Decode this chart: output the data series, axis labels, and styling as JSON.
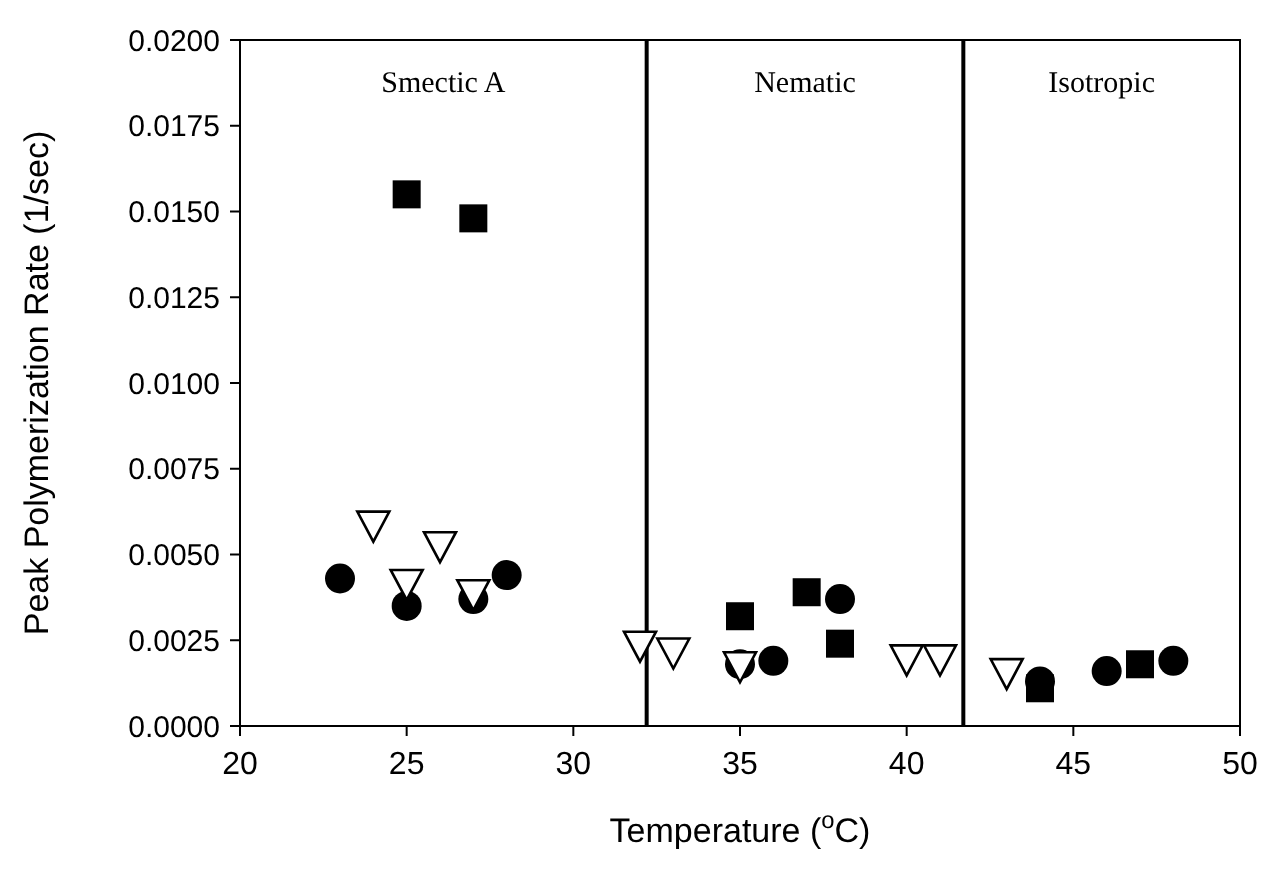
{
  "chart_data": {
    "type": "scatter",
    "xlabel": "Temperature ($^{o}$C)",
    "ylabel": "Peak Polymerization Rate (1/sec)",
    "xlim": [
      20,
      50
    ],
    "xticks": [
      20,
      25,
      30,
      35,
      40,
      45,
      50
    ],
    "ylim": [
      0,
      0.02
    ],
    "yticks": [
      {
        "value": 0,
        "label": "0.0000"
      },
      {
        "value": 0.0025,
        "label": "0.0025"
      },
      {
        "value": 0.005,
        "label": "0.0050"
      },
      {
        "value": 0.0075,
        "label": "0.0075"
      },
      {
        "value": 0.01,
        "label": "0.0100"
      },
      {
        "value": 0.0125,
        "label": "0.0125"
      },
      {
        "value": 0.015,
        "label": "0.0150"
      },
      {
        "value": 0.0175,
        "label": "0.0175"
      },
      {
        "value": 0.02,
        "label": "0.0200"
      }
    ],
    "grid": false,
    "ref_lines": [
      {
        "axis": "x",
        "value": 32.2,
        "color": "#000000"
      },
      {
        "axis": "x",
        "value": 41.7,
        "color": "#000000"
      }
    ],
    "annotations": [
      "Smectic A",
      "Nematic",
      "Isotropic"
    ],
    "series": [
      {
        "color": "#000000",
        "marker": "square",
        "x": [
          25,
          27,
          35,
          37,
          38,
          44,
          47
        ],
        "values": [
          0.0155,
          0.0148,
          0.0032,
          0.0039,
          0.0024,
          0.0011,
          0.0018
        ]
      },
      {
        "color": "#000000",
        "marker": "circle",
        "x": [
          23,
          25,
          27,
          28,
          35,
          36,
          38,
          44,
          46,
          48
        ],
        "values": [
          0.0043,
          0.0035,
          0.0037,
          0.0044,
          0.0018,
          0.0019,
          0.0037,
          0.0013,
          0.0016,
          0.0019
        ]
      },
      {
        "color": "#000000",
        "marker": "triangle",
        "x": [
          24,
          25,
          26,
          27,
          32,
          33,
          35,
          40,
          41,
          43
        ],
        "values": [
          0.0059,
          0.0042,
          0.0053,
          0.0039,
          0.0024,
          0.0022,
          0.0018,
          0.002,
          0.002,
          0.0016
        ]
      }
    ]
  }
}
